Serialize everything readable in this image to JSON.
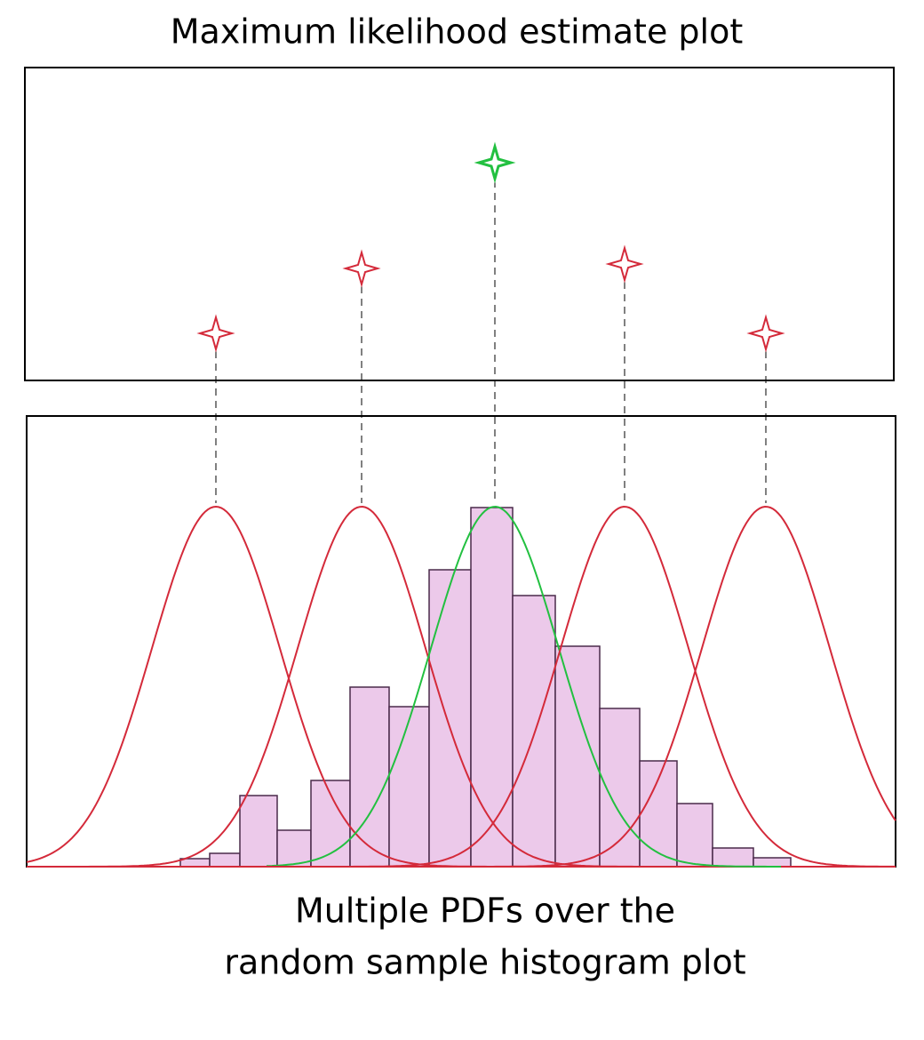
{
  "top_panel": {
    "title": "Maximum likelihood estimate plot"
  },
  "bottom_panel": {
    "caption": [
      "Multiple PDFs over the",
      "random sample histogram plot"
    ]
  }
}
